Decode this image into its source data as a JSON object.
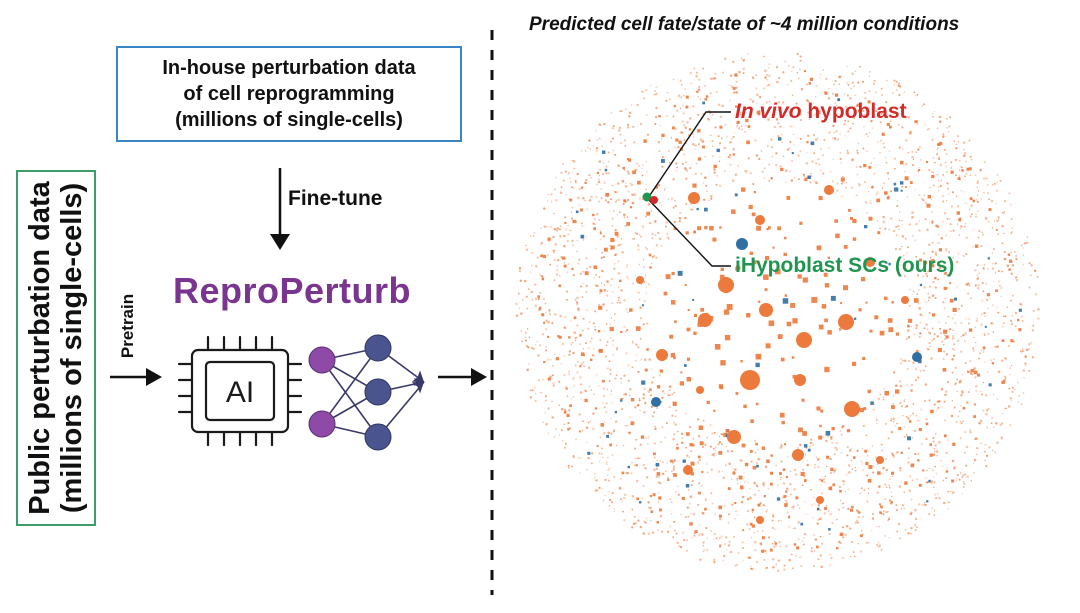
{
  "left_panel": {
    "public_data": {
      "line1": "Public perturbation data",
      "line2": "(millions of single-cells)"
    },
    "inhouse_data": {
      "line1": "In-house perturbation data",
      "line2": "of cell reprogramming",
      "line3": "(millions of single-cells)"
    },
    "finetune_label": "Fine-tune",
    "pretrain_label": "Pretrain",
    "model_name": "ReproPerturb",
    "chip_label": "AI"
  },
  "right_panel": {
    "title": "Predicted cell fate/state of ~4 million conditions",
    "invivo_label": {
      "italic_part": "In vivo",
      "rest": " hypoblast"
    },
    "ihypoblast_label": "iHypoblast SCs (ours)"
  },
  "colors": {
    "public_box_border": "#3a9e6a",
    "inhouse_box_border": "#3a86c4",
    "brand_purple": "#7a3590",
    "cloud_orange": "#ec7a3c",
    "cloud_blue": "#2f6fa3",
    "invivo_red": "#d42a2a",
    "ihypoblast_green": "#1f9550",
    "nn_input_node": "#8e4aa6",
    "nn_hidden_node": "#4a5590"
  },
  "icons": {
    "chip": "ai-chip-icon",
    "network": "neural-network-icon"
  }
}
